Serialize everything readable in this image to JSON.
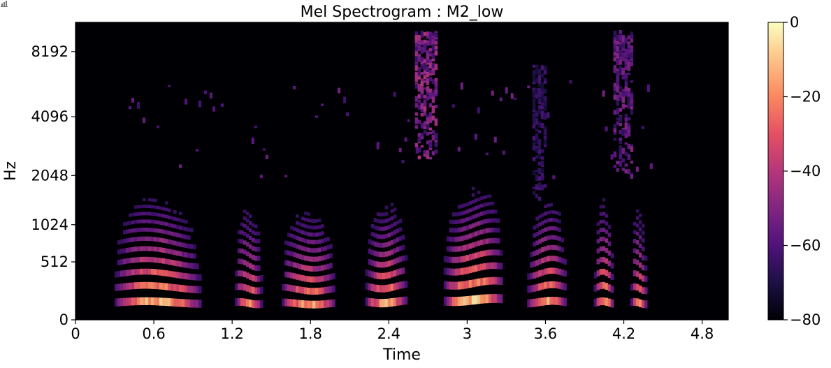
{
  "chart_data": {
    "type": "heatmap",
    "title": "Mel Spectrogram : M2_low",
    "xlabel": "Time",
    "ylabel": "Hz",
    "xlim": [
      0,
      5.0
    ],
    "x_ticks": [
      0,
      0.6,
      1.2,
      1.8,
      2.4,
      3.0,
      3.6,
      4.2,
      4.8
    ],
    "x_tick_labels": [
      "0",
      "0.6",
      "1.2",
      "1.8",
      "2.4",
      "3",
      "3.6",
      "4.2",
      "4.8"
    ],
    "y_scale": "mel",
    "ylim_hz": [
      0,
      11025
    ],
    "y_ticks": [
      0,
      512,
      1024,
      2048,
      4096,
      8192
    ],
    "y_tick_labels": [
      "0",
      "512",
      "1024",
      "2048",
      "4096",
      "8192"
    ],
    "colorbar": {
      "range_db": [
        -80,
        0
      ],
      "ticks": [
        0,
        -20,
        -40,
        -60,
        -80
      ],
      "tick_labels": [
        "0",
        "−20",
        "−40",
        "−60",
        "−80"
      ],
      "colormap": "magma",
      "stops": [
        "#000004",
        "#1c1044",
        "#4f127b",
        "#812581",
        "#b5367a",
        "#e55064",
        "#fb8761",
        "#fec287",
        "#fcfdbf"
      ]
    },
    "background_color": "#000004",
    "voiced_segments": [
      {
        "start": 0.3,
        "end": 1.15,
        "f0": 125,
        "strength": 0.95
      },
      {
        "start": 1.22,
        "end": 1.48,
        "f0": 120,
        "strength": 0.85
      },
      {
        "start": 1.58,
        "end": 2.1,
        "f0": 118,
        "strength": 0.9
      },
      {
        "start": 2.22,
        "end": 2.62,
        "f0": 130,
        "strength": 0.9
      },
      {
        "start": 2.82,
        "end": 3.4,
        "f0": 145,
        "strength": 1.0
      },
      {
        "start": 3.46,
        "end": 3.84,
        "f0": 128,
        "strength": 0.9
      },
      {
        "start": 3.97,
        "end": 4.15,
        "f0": 125,
        "strength": 0.9
      },
      {
        "start": 4.25,
        "end": 4.4,
        "f0": 120,
        "strength": 0.85
      }
    ],
    "fricative_bursts": [
      {
        "start": 2.6,
        "end": 2.76,
        "low_hz": 2500,
        "high_hz": 10000,
        "strength": 0.7
      },
      {
        "start": 4.12,
        "end": 4.25,
        "low_hz": 2000,
        "high_hz": 10000,
        "strength": 0.55
      },
      {
        "start": 3.5,
        "end": 3.6,
        "low_hz": 1500,
        "high_hz": 7000,
        "strength": 0.35
      }
    ]
  }
}
